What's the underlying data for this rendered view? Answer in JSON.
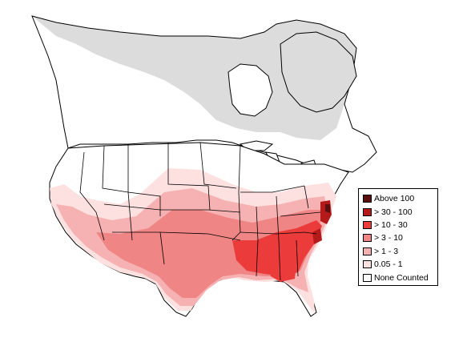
{
  "map": {
    "colors": {
      "background": "#ffffff",
      "no_data": "#dcdcdc",
      "outline": "#000000",
      "water": "#ffffff"
    }
  },
  "legend": {
    "items": [
      {
        "label": "Above 100",
        "color": "#5a0e0e"
      },
      {
        "label": "> 30 - 100",
        "color": "#b51a1a"
      },
      {
        "label": "> 10 - 30",
        "color": "#ec3b3b"
      },
      {
        "label": "> 3 - 10",
        "color": "#f08585"
      },
      {
        "label": "> 1 - 3",
        "color": "#f6b2b2"
      },
      {
        "label": "0.05 - 1",
        "color": "#fde0e0"
      },
      {
        "label": "None Counted",
        "color": "#ffffff"
      }
    ]
  }
}
